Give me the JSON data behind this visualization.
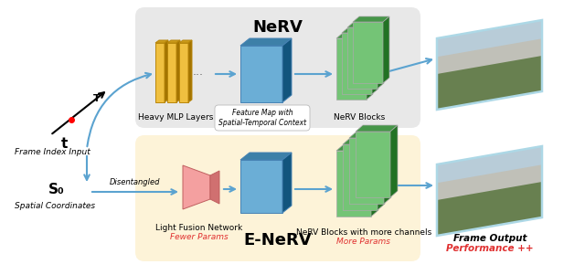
{
  "title_nerv": "NeRV",
  "title_enerv": "E-NeRV",
  "label_frame_index": "Frame Index Input",
  "label_spatial": "Spatial Coordinates",
  "label_t": "t",
  "label_T": "T",
  "label_S0": "S₀",
  "label_heavy_mlp": "Heavy MLP Layers",
  "label_feature_map": "Feature Map with\nSpatial-Temporal Context",
  "label_nerv_blocks": "NeRV Blocks",
  "label_light_fusion": "Light Fusion Network",
  "label_fewer_params": "Fewer Params",
  "label_enerv_blocks": "NeRV Blocks with more channels",
  "label_more_params": "More Params",
  "label_frame_output": "Frame Output",
  "label_performance": "Performance ++",
  "label_disentangled": "Disentangled",
  "bg_nerv": "#e8e8e8",
  "bg_enerv": "#fdf3d8",
  "bg_feature_label": "#ffffff",
  "color_mlp": "#f0c040",
  "color_mlp_dark": "#c89a20",
  "color_mlp_darker": "#a07810",
  "color_blue_box": "#6baed6",
  "color_blue_dark": "#4b8eb6",
  "color_blue_darker": "#2b6e96",
  "color_green_block": "#74c476",
  "color_green_dark": "#54a456",
  "color_green_darker": "#348436",
  "color_pink_block": "#f4a0a0",
  "color_pink_dark": "#d07070",
  "color_pink_darker": "#b05050",
  "color_arrow": "#5ba3d0",
  "color_red_text": "#e03030",
  "color_black": "#000000",
  "color_white": "#ffffff",
  "fig_width": 6.4,
  "fig_height": 3.01
}
